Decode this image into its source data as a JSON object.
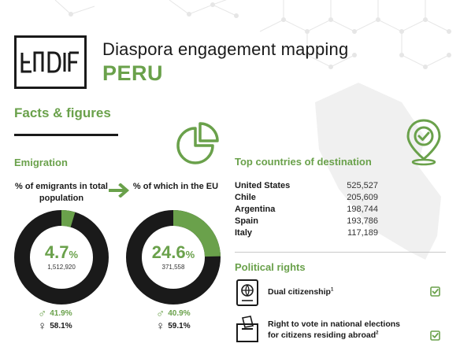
{
  "header": {
    "logo_text": "EUDIF",
    "title": "Diaspora engagement mapping",
    "country": "PERU"
  },
  "section_title": "Facts & figures",
  "emigration": {
    "title": "Emigration",
    "left_head": "% of emigrants in total population",
    "right_head": "% of which in the EU",
    "donut_total": {
      "value_text": "4.7",
      "unit": "%",
      "absolute": "1,512,920",
      "fraction": 0.047
    },
    "donut_eu": {
      "value_text": "24.6",
      "unit": "%",
      "absolute": "371,558",
      "fraction": 0.246
    },
    "gender_total": {
      "male": "41.9%",
      "female": "58.1%"
    },
    "gender_eu": {
      "male": "40.9%",
      "female": "59.1%"
    }
  },
  "top_countries": {
    "title": "Top countries of destination",
    "rows": [
      {
        "name": "United States",
        "value": "525,527"
      },
      {
        "name": "Chile",
        "value": "205,609"
      },
      {
        "name": "Argentina",
        "value": "198,744"
      },
      {
        "name": "Spain",
        "value": "193,786"
      },
      {
        "name": "Italy",
        "value": "117,189"
      }
    ]
  },
  "political_rights": {
    "title": "Political rights",
    "items": [
      {
        "label": "Dual citizenship",
        "note": "1",
        "checked": true
      },
      {
        "label_line1": "Right to vote in national elections",
        "label_line2": "for citizens residing abroad",
        "note": "2",
        "checked": true
      }
    ]
  },
  "colors": {
    "accent": "#6aa14b",
    "dark": "#1a1a1a"
  },
  "icons": [
    "pie-chart-icon",
    "location-pin-check-icon",
    "arrow-right-icon",
    "passport-icon",
    "ballot-box-icon",
    "checkbox-icon"
  ]
}
